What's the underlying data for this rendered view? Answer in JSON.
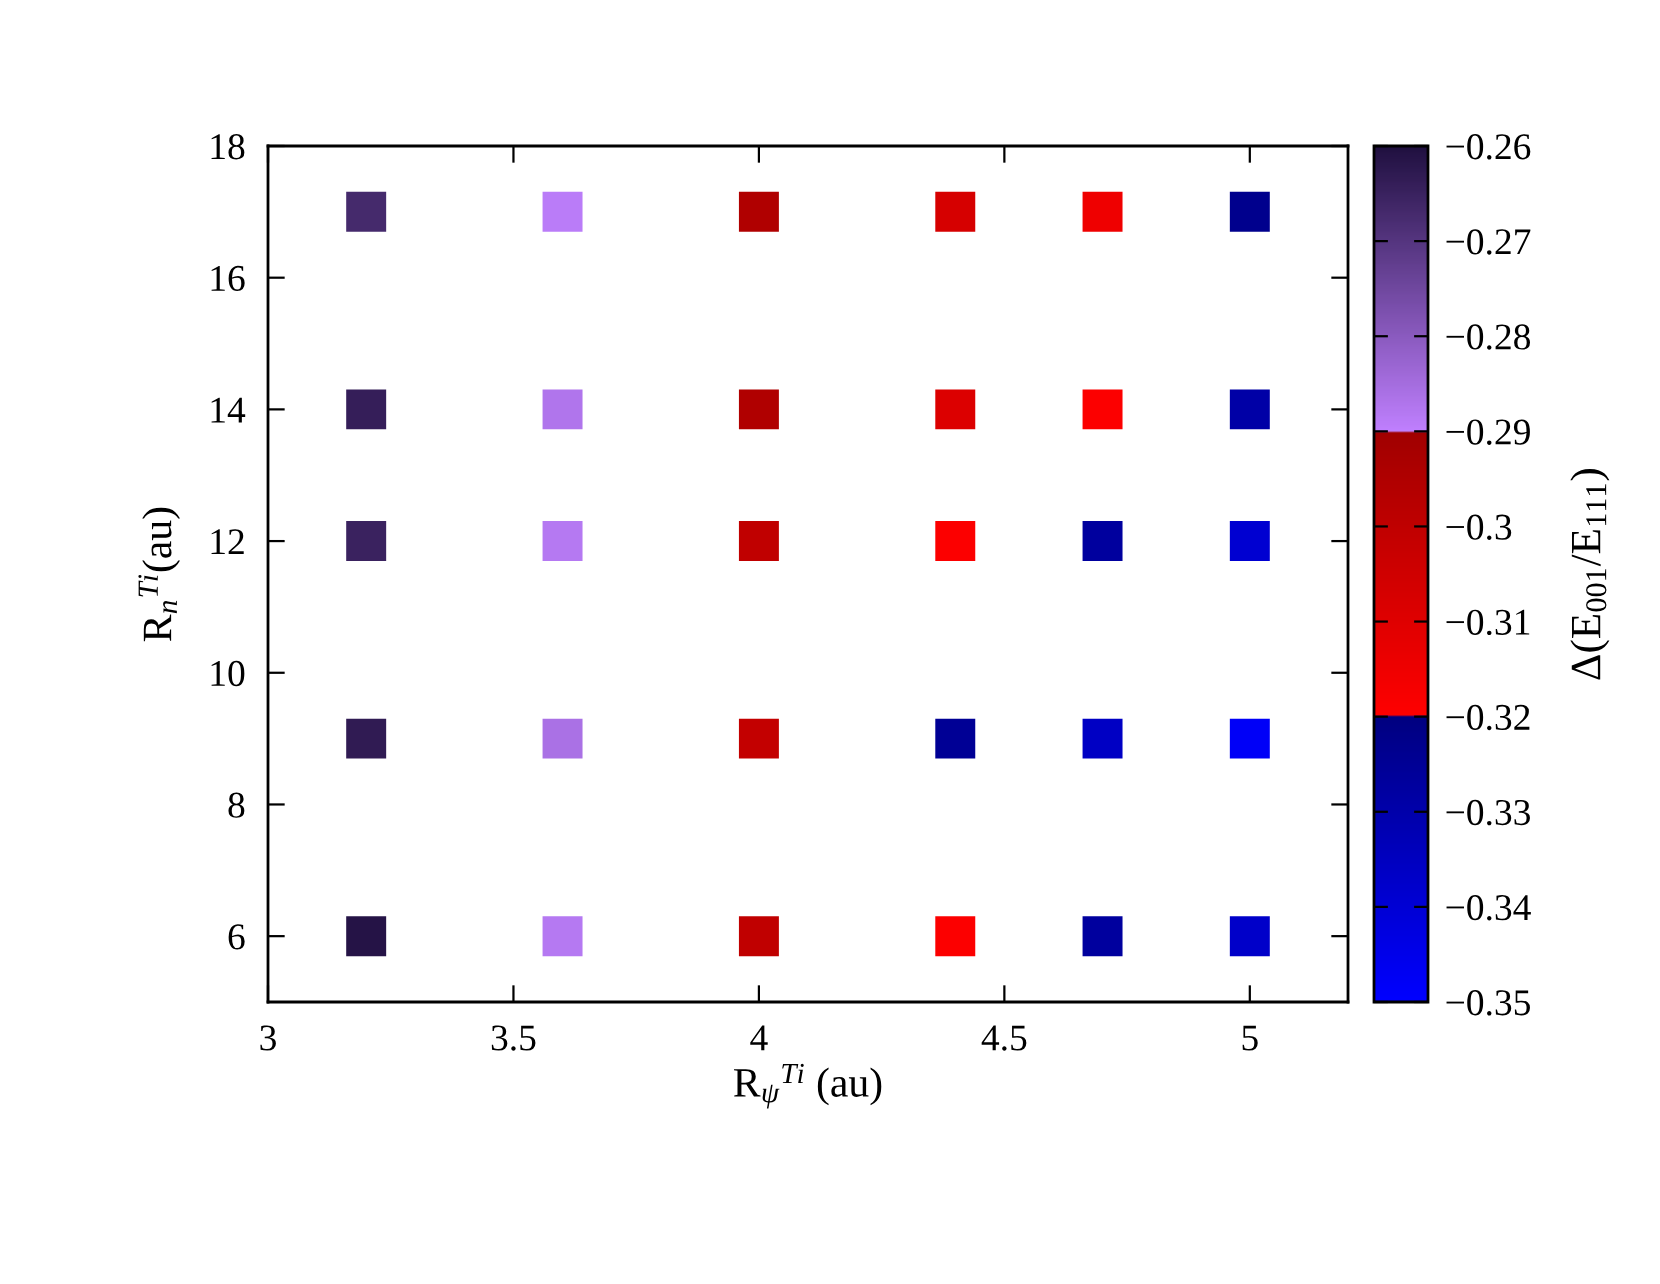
{
  "chart_data": {
    "type": "scatter",
    "xlabel": "R$_{ψ}$$^{Ti}$ (au)",
    "ylabel": "R$_{n}$$^{Ti}$(au)",
    "clabel": "Δ(E$_{001}$/E$_{111}$)",
    "marker": "square",
    "x": [
      3.2,
      3.6,
      4.0,
      4.4,
      4.7,
      5.0,
      3.2,
      3.6,
      4.0,
      4.4,
      4.7,
      5.0,
      3.2,
      3.6,
      4.0,
      4.4,
      4.7,
      5.0,
      3.2,
      3.6,
      4.0,
      4.4,
      4.7,
      5.0,
      3.2,
      3.6,
      4.0,
      4.4,
      4.7,
      5.0
    ],
    "values": [
      17,
      17,
      17,
      17,
      17,
      17,
      14,
      14,
      14,
      14,
      14,
      14,
      12,
      12,
      12,
      12,
      12,
      12,
      9,
      9,
      9,
      9,
      9,
      9,
      6,
      6,
      6,
      6,
      6,
      6
    ],
    "cvalues": [
      -0.267,
      -0.289,
      -0.295,
      -0.307,
      -0.315,
      -0.323,
      -0.264,
      -0.287,
      -0.295,
      -0.309,
      -0.319,
      -0.329,
      -0.265,
      -0.288,
      -0.3,
      -0.319,
      -0.327,
      -0.339,
      -0.263,
      -0.286,
      -0.301,
      -0.325,
      -0.336,
      -0.348,
      -0.261,
      -0.288,
      -0.3,
      -0.319,
      -0.327,
      -0.337
    ],
    "xlim": [
      3,
      5.2
    ],
    "xticks": [
      3,
      3.5,
      4,
      4.5,
      5
    ],
    "ylim": [
      5,
      18
    ],
    "yticks": [
      6,
      8,
      10,
      12,
      14,
      16,
      18
    ],
    "clim": [
      -0.35,
      -0.26
    ],
    "cticks": [
      {
        "value": -0.35,
        "label": "−0.35"
      },
      {
        "value": -0.34,
        "label": "−0.34"
      },
      {
        "value": -0.33,
        "label": "−0.33"
      },
      {
        "value": -0.32,
        "label": "−0.32"
      },
      {
        "value": -0.31,
        "label": "−0.31"
      },
      {
        "value": -0.3,
        "label": "−0.3"
      },
      {
        "value": -0.29,
        "label": "−0.29"
      },
      {
        "value": -0.28,
        "label": "−0.28"
      },
      {
        "value": -0.27,
        "label": "−0.27"
      },
      {
        "value": -0.26,
        "label": "−0.26"
      }
    ]
  }
}
